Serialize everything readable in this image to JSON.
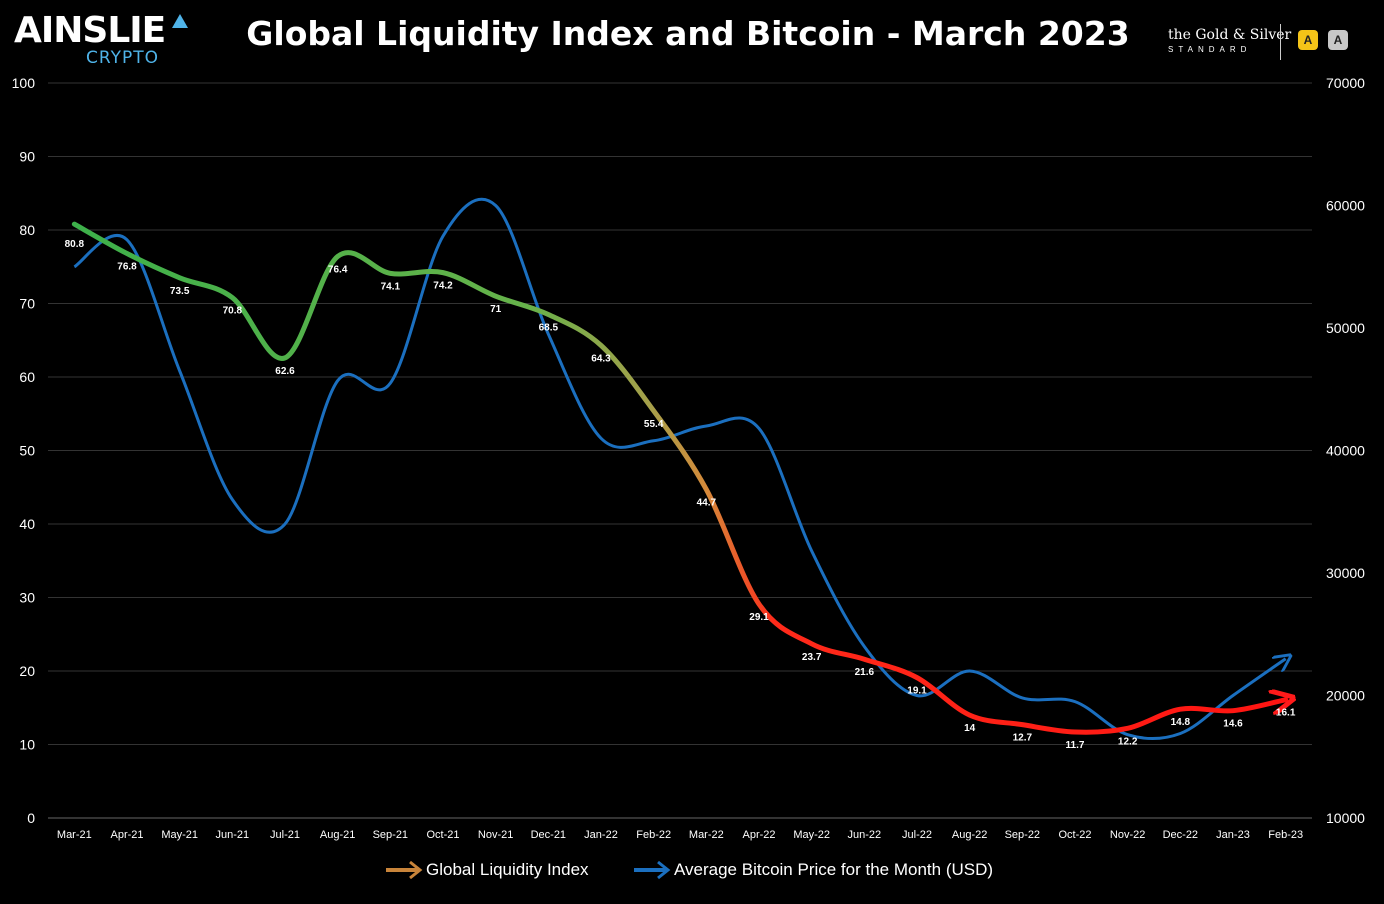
{
  "header": {
    "logo_main": "AINSLIE",
    "logo_sub": "CRYPTO",
    "title": "Global Liquidity Index and Bitcoin - March 2023",
    "partner_title": "the Gold & Silver",
    "partner_sub": "STANDARD",
    "badge_1": "A",
    "badge_2": "A"
  },
  "colors": {
    "background": "#000000",
    "grid": "#333333",
    "btc_line": "#1b6fbf",
    "gli_green": "#3fae4a",
    "gli_red": "#ff1a1a",
    "text": "#ffffff"
  },
  "chart_data": {
    "type": "line",
    "title": "Global Liquidity Index and Bitcoin - March 2023",
    "categories": [
      "Mar-21",
      "Apr-21",
      "May-21",
      "Jun-21",
      "Jul-21",
      "Aug-21",
      "Sep-21",
      "Oct-21",
      "Nov-21",
      "Dec-21",
      "Jan-22",
      "Feb-22",
      "Mar-22",
      "Apr-22",
      "May-22",
      "Jun-22",
      "Jul-22",
      "Aug-22",
      "Sep-22",
      "Oct-22",
      "Nov-22",
      "Dec-22",
      "Jan-23",
      "Feb-23"
    ],
    "left_axis": {
      "ylim": [
        0,
        100
      ],
      "ticks": [
        0,
        10,
        20,
        30,
        40,
        50,
        60,
        70,
        80,
        90,
        100
      ]
    },
    "right_axis": {
      "ylim": [
        10000,
        70000
      ],
      "ticks": [
        10000,
        20000,
        30000,
        40000,
        50000,
        60000,
        70000
      ]
    },
    "grid": true,
    "legend_position": "bottom",
    "series": [
      {
        "name": "Global Liquidity Index",
        "axis": "left",
        "values": [
          80.8,
          76.8,
          73.5,
          70.8,
          62.6,
          76.4,
          74.1,
          74.2,
          71,
          68.5,
          64.3,
          55.4,
          44.7,
          29.1,
          23.7,
          21.6,
          19.1,
          14,
          12.7,
          11.7,
          12.2,
          14.8,
          14.6,
          16.1
        ],
        "labels": [
          "80.8",
          "76.8",
          "73.5",
          "70.8",
          "62.6",
          "76.4",
          "74.1",
          "74.2",
          "71",
          "68.5",
          "64.3",
          "55.4",
          "44.7",
          "29.1",
          "23.7",
          "21.6",
          "19.1",
          "14",
          "12.7",
          "11.7",
          "12.2",
          "14.8",
          "14.6",
          "16.1"
        ]
      },
      {
        "name": "Average Bitcoin Price for the Month (USD)",
        "axis": "right",
        "values": [
          55000,
          57200,
          46500,
          36000,
          34000,
          45700,
          45500,
          57500,
          60000,
          49500,
          41000,
          40800,
          42000,
          41800,
          31800,
          24000,
          20000,
          22000,
          19800,
          19500,
          16800,
          16900,
          20000,
          23000
        ]
      }
    ]
  }
}
